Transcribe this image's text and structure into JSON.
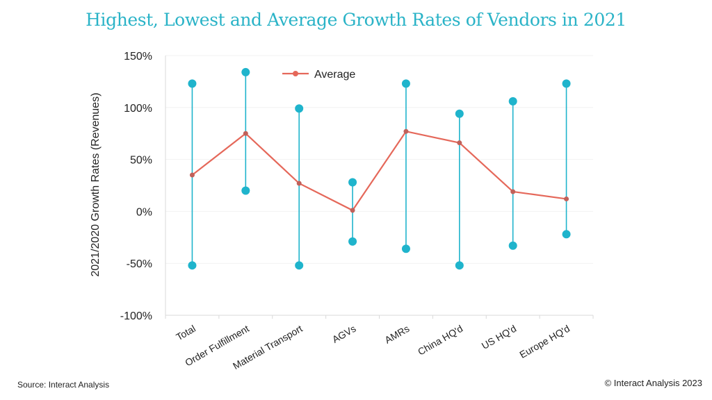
{
  "title": "Highest, Lowest and Average Growth Rates of Vendors in 2021",
  "source": "Source: Interact Analysis",
  "copyright": "© Interact Analysis 2023",
  "colors": {
    "range": "#1fb4cc",
    "average": "#e5685a",
    "average_marker": "#c0615a",
    "axis": "#d9d9d9",
    "grid": "#f2f2f2"
  },
  "chart_data": {
    "type": "line",
    "title": "Highest, Lowest and Average Growth Rates of Vendors in 2021",
    "ylabel": "2021/2020 Growth Rates (Revenues)",
    "xlabel": "",
    "categories": [
      "Total",
      "Order Fulfillment",
      "Material Transport",
      "AGVs",
      "AMRs",
      "China HQ'd",
      "US HQ'd",
      "Europe HQ'd"
    ],
    "ylim": [
      -100,
      150
    ],
    "yticks": [
      -100,
      -50,
      0,
      50,
      100,
      150
    ],
    "ytick_labels": [
      "-100%",
      "-50%",
      "0%",
      "50%",
      "100%",
      "150%"
    ],
    "legend_position": "top-center",
    "series": [
      {
        "name": "Average",
        "kind": "line",
        "values": [
          35,
          75,
          27,
          1,
          77,
          66,
          19,
          12
        ]
      },
      {
        "kind": "high",
        "values": [
          123,
          134,
          99,
          28,
          123,
          94,
          106,
          123
        ]
      },
      {
        "kind": "low",
        "values": [
          -52,
          20,
          -52,
          -29,
          -36,
          -52,
          -33,
          -22
        ]
      }
    ]
  }
}
